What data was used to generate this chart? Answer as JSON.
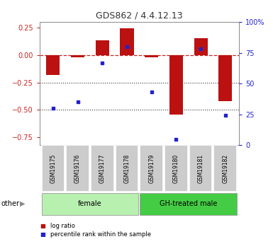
{
  "title": "GDS862 / 4.4.12.13",
  "samples": [
    "GSM19175",
    "GSM19176",
    "GSM19177",
    "GSM19178",
    "GSM19179",
    "GSM19180",
    "GSM19181",
    "GSM19182"
  ],
  "log_ratio": [
    -0.18,
    -0.02,
    0.13,
    0.245,
    -0.02,
    -0.54,
    0.15,
    -0.42
  ],
  "percentile_rank": [
    30,
    35,
    67,
    80,
    43,
    5,
    78,
    24
  ],
  "groups": [
    {
      "label": "female",
      "start": 0,
      "end": 4,
      "color": "#b8f0b0"
    },
    {
      "label": "GH-treated male",
      "start": 4,
      "end": 8,
      "color": "#44cc44"
    }
  ],
  "bar_color": "#bb1111",
  "dot_color": "#2222cc",
  "ylim_left": [
    -0.82,
    0.3
  ],
  "ylim_right": [
    0,
    100
  ],
  "yticks_left": [
    0.25,
    0.0,
    -0.25,
    -0.5,
    -0.75
  ],
  "yticks_right": [
    100,
    75,
    50,
    25,
    0
  ],
  "hline_positions": [
    -0.25,
    -0.5
  ],
  "zero_line_color": "#cc2222",
  "grid_line_color": "#333333",
  "legend_items": [
    {
      "label": "log ratio",
      "color": "#bb1111"
    },
    {
      "label": "percentile rank within the sample",
      "color": "#2222cc"
    }
  ],
  "other_label": "other",
  "bar_width": 0.55,
  "sample_bg": "#cccccc",
  "plot_bg": "#ffffff"
}
